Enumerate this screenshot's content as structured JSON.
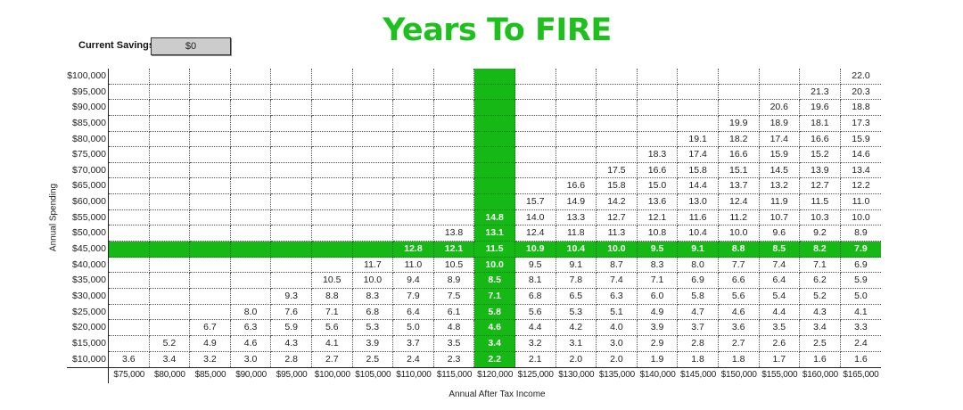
{
  "title": "Years To FIRE",
  "savings": {
    "label": "Current Savings:",
    "value": "$0"
  },
  "axes": {
    "y_title": "Annual Spending",
    "x_title": "Annual After Tax Income"
  },
  "highlight": {
    "color": "#16b816",
    "row_label": "$45,000",
    "col_label": "$120,000"
  },
  "chart_data": {
    "type": "table",
    "title": "Years To FIRE",
    "xlabel": "Annual After Tax Income",
    "ylabel": "Annual Spending",
    "columns": [
      "$75,000",
      "$80,000",
      "$85,000",
      "$90,000",
      "$95,000",
      "$100,000",
      "$105,000",
      "$110,000",
      "$115,000",
      "$120,000",
      "$125,000",
      "$130,000",
      "$135,000",
      "$140,000",
      "$145,000",
      "$150,000",
      "$155,000",
      "$160,000",
      "$165,000"
    ],
    "rows": [
      {
        "label": "$100,000",
        "values": [
          "",
          "",
          "",
          "",
          "",
          "",
          "",
          "",
          "",
          "",
          "",
          "",
          "",
          "",
          "",
          "",
          "",
          "",
          "22.0"
        ]
      },
      {
        "label": "$95,000",
        "values": [
          "",
          "",
          "",
          "",
          "",
          "",
          "",
          "",
          "",
          "",
          "",
          "",
          "",
          "",
          "",
          "",
          "",
          "21.3",
          "20.3"
        ]
      },
      {
        "label": "$90,000",
        "values": [
          "",
          "",
          "",
          "",
          "",
          "",
          "",
          "",
          "",
          "",
          "",
          "",
          "",
          "",
          "",
          "",
          "20.6",
          "19.6",
          "18.8"
        ]
      },
      {
        "label": "$85,000",
        "values": [
          "",
          "",
          "",
          "",
          "",
          "",
          "",
          "",
          "",
          "",
          "",
          "",
          "",
          "",
          "",
          "19.9",
          "18.9",
          "18.1",
          "17.3"
        ]
      },
      {
        "label": "$80,000",
        "values": [
          "",
          "",
          "",
          "",
          "",
          "",
          "",
          "",
          "",
          "",
          "",
          "",
          "",
          "",
          "19.1",
          "18.2",
          "17.4",
          "16.6",
          "15.9"
        ]
      },
      {
        "label": "$75,000",
        "values": [
          "",
          "",
          "",
          "",
          "",
          "",
          "",
          "",
          "",
          "",
          "",
          "",
          "",
          "18.3",
          "17.4",
          "16.6",
          "15.9",
          "15.2",
          "14.6"
        ]
      },
      {
        "label": "$70,000",
        "values": [
          "",
          "",
          "",
          "",
          "",
          "",
          "",
          "",
          "",
          "",
          "",
          "",
          "17.5",
          "16.6",
          "15.8",
          "15.1",
          "14.5",
          "13.9",
          "13.4"
        ]
      },
      {
        "label": "$65,000",
        "values": [
          "",
          "",
          "",
          "",
          "",
          "",
          "",
          "",
          "",
          "",
          "",
          "16.6",
          "15.8",
          "15.0",
          "14.4",
          "13.7",
          "13.2",
          "12.7",
          "12.2"
        ]
      },
      {
        "label": "$60,000",
        "values": [
          "",
          "",
          "",
          "",
          "",
          "",
          "",
          "",
          "",
          "",
          "15.7",
          "14.9",
          "14.2",
          "13.6",
          "13.0",
          "12.4",
          "11.9",
          "11.5",
          "11.0"
        ]
      },
      {
        "label": "$55,000",
        "values": [
          "",
          "",
          "",
          "",
          "",
          "",
          "",
          "",
          "",
          "14.8",
          "14.0",
          "13.3",
          "12.7",
          "12.1",
          "11.6",
          "11.2",
          "10.7",
          "10.3",
          "10.0"
        ]
      },
      {
        "label": "$50,000",
        "values": [
          "",
          "",
          "",
          "",
          "",
          "",
          "",
          "",
          "13.8",
          "13.1",
          "12.4",
          "11.8",
          "11.3",
          "10.8",
          "10.4",
          "10.0",
          "9.6",
          "9.2",
          "8.9"
        ]
      },
      {
        "label": "$45,000",
        "values": [
          "",
          "",
          "",
          "",
          "",
          "",
          "",
          "12.8",
          "12.1",
          "11.5",
          "10.9",
          "10.4",
          "10.0",
          "9.5",
          "9.1",
          "8.8",
          "8.5",
          "8.2",
          "7.9"
        ]
      },
      {
        "label": "$40,000",
        "values": [
          "",
          "",
          "",
          "",
          "",
          "",
          "11.7",
          "11.0",
          "10.5",
          "10.0",
          "9.5",
          "9.1",
          "8.7",
          "8.3",
          "8.0",
          "7.7",
          "7.4",
          "7.1",
          "6.9"
        ]
      },
      {
        "label": "$35,000",
        "values": [
          "",
          "",
          "",
          "",
          "",
          "10.5",
          "10.0",
          "9.4",
          "8.9",
          "8.5",
          "8.1",
          "7.8",
          "7.4",
          "7.1",
          "6.9",
          "6.6",
          "6.4",
          "6.2",
          "5.9"
        ]
      },
      {
        "label": "$30,000",
        "values": [
          "",
          "",
          "",
          "",
          "9.3",
          "8.8",
          "8.3",
          "7.9",
          "7.5",
          "7.1",
          "6.8",
          "6.5",
          "6.3",
          "6.0",
          "5.8",
          "5.6",
          "5.4",
          "5.2",
          "5.0"
        ]
      },
      {
        "label": "$25,000",
        "values": [
          "",
          "",
          "",
          "8.0",
          "7.6",
          "7.1",
          "6.8",
          "6.4",
          "6.1",
          "5.8",
          "5.6",
          "5.3",
          "5.1",
          "4.9",
          "4.7",
          "4.6",
          "4.4",
          "4.3",
          "4.1"
        ]
      },
      {
        "label": "$20,000",
        "values": [
          "",
          "",
          "6.7",
          "6.3",
          "5.9",
          "5.6",
          "5.3",
          "5.0",
          "4.8",
          "4.6",
          "4.4",
          "4.2",
          "4.0",
          "3.9",
          "3.7",
          "3.6",
          "3.5",
          "3.4",
          "3.3"
        ]
      },
      {
        "label": "$15,000",
        "values": [
          "",
          "5.2",
          "4.9",
          "4.6",
          "4.3",
          "4.1",
          "3.9",
          "3.7",
          "3.5",
          "3.4",
          "3.2",
          "3.1",
          "3.0",
          "2.9",
          "2.8",
          "2.7",
          "2.6",
          "2.5",
          "2.4"
        ]
      },
      {
        "label": "$10,000",
        "values": [
          "3.6",
          "3.4",
          "3.2",
          "3.0",
          "2.8",
          "2.7",
          "2.5",
          "2.4",
          "2.3",
          "2.2",
          "2.1",
          "2.0",
          "2.0",
          "1.9",
          "1.8",
          "1.8",
          "1.7",
          "1.6",
          "1.6"
        ]
      }
    ]
  }
}
